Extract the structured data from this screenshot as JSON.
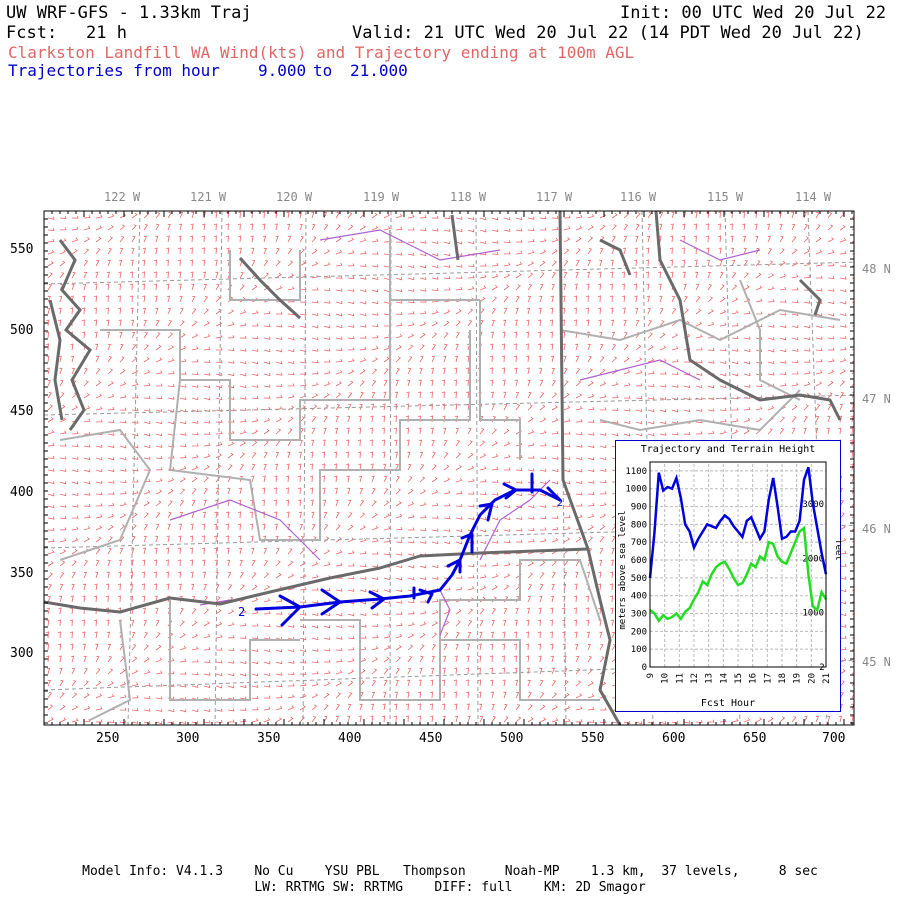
{
  "header": {
    "title_left": "UW WRF-GFS - 1.33km Traj",
    "init": "Init: 00 UTC Wed 20 Jul 22",
    "fcst_label": "Fcst:",
    "fcst_value": "21 h",
    "valid": "Valid: 21 UTC Wed 20 Jul 22 (14 PDT Wed 20 Jul 22)",
    "subtitle_red": "Clarkston Landfill WA Wind(kts) and Trajectory ending at 100m AGL",
    "subtitle_blue_prefix": "Trajectories from hour",
    "hour_from": "9.000",
    "to_word": "to",
    "hour_to": "21.000"
  },
  "map": {
    "lon_labels": [
      "122 W",
      "121 W",
      "120 W",
      "119 W",
      "118 W",
      "117 W",
      "116 W",
      "115 W",
      "114 W"
    ],
    "lat_labels": [
      "48 N",
      "47 N",
      "46 N",
      "45 N"
    ],
    "x_ticks": [
      "250",
      "300",
      "350",
      "400",
      "450",
      "500",
      "550",
      "600",
      "650",
      "700"
    ],
    "y_ticks": [
      "550",
      "500",
      "450",
      "400",
      "350",
      "300"
    ],
    "trajectory_start_label": "2",
    "trajectory_end_label": "2",
    "colors": {
      "wind_barbs": "#ee6666",
      "trajectory": "#0000dd",
      "borders": "#777777",
      "county_lines": "#aaaaaa",
      "rivers": "#aa55cc"
    }
  },
  "inset": {
    "title": "Trajectory and Terrain Height",
    "ylabel_left": "meters above sea level",
    "ylabel_right": "feet",
    "xlabel": "Fcst Hour",
    "y_ticks_m": [
      "1100",
      "1000",
      "900",
      "800",
      "700",
      "600",
      "500",
      "400",
      "300",
      "200",
      "100",
      "0"
    ],
    "y_ticks_ft": [
      "3000",
      "2000",
      "1000"
    ],
    "x_ticks": [
      "9",
      "10",
      "11",
      "12",
      "13",
      "14",
      "15",
      "16",
      "17",
      "18",
      "19",
      "20",
      "21"
    ],
    "end_marker": "2"
  },
  "chart_data": {
    "type": "line",
    "title": "Trajectory and Terrain Height",
    "xlabel": "Fcst Hour",
    "ylabel": "meters above sea level",
    "xlim": [
      9,
      21
    ],
    "ylim": [
      0,
      1150
    ],
    "series": [
      {
        "color": "#0000dd",
        "x": [
          9.0,
          9.3,
          9.6,
          9.9,
          10.2,
          10.5,
          10.8,
          11.1,
          11.4,
          11.7,
          12.0,
          12.3,
          12.6,
          12.9,
          13.2,
          13.5,
          13.8,
          14.1,
          14.4,
          14.7,
          15.0,
          15.3,
          15.6,
          15.9,
          16.2,
          16.5,
          16.8,
          17.1,
          17.4,
          17.7,
          18.0,
          18.3,
          18.6,
          18.9,
          19.2,
          19.5,
          19.8,
          20.1,
          20.4,
          20.7,
          21.0
        ],
        "y": [
          500,
          750,
          1090,
          990,
          1010,
          1000,
          1060,
          950,
          800,
          760,
          670,
          720,
          760,
          800,
          790,
          780,
          820,
          850,
          830,
          790,
          760,
          730,
          820,
          840,
          780,
          720,
          760,
          940,
          1060,
          900,
          720,
          730,
          760,
          760,
          820,
          1050,
          1120,
          920,
          780,
          640,
          520
        ]
      },
      {
        "color": "#22dd22",
        "x": [
          9.0,
          9.3,
          9.6,
          9.9,
          10.2,
          10.5,
          10.8,
          11.1,
          11.4,
          11.7,
          12.0,
          12.3,
          12.6,
          12.9,
          13.2,
          13.5,
          13.8,
          14.1,
          14.4,
          14.7,
          15.0,
          15.3,
          15.6,
          15.9,
          16.2,
          16.5,
          16.8,
          17.1,
          17.4,
          17.7,
          18.0,
          18.3,
          18.6,
          18.9,
          19.2,
          19.5,
          19.8,
          20.1,
          20.4,
          20.7,
          21.0
        ],
        "y": [
          320,
          300,
          260,
          290,
          270,
          280,
          300,
          270,
          310,
          330,
          380,
          420,
          480,
          460,
          520,
          560,
          580,
          590,
          550,
          500,
          460,
          470,
          520,
          580,
          560,
          620,
          600,
          700,
          690,
          620,
          590,
          580,
          640,
          700,
          760,
          780,
          520,
          340,
          320,
          420,
          380
        ]
      }
    ]
  },
  "footer": {
    "line1": "Model Info: V4.1.3    No Cu    YSU PBL   Thompson     Noah-MP    1.3 km,  37 levels,     8 sec",
    "line2": "LW: RRTMG SW: RRTMG    DIFF: full    KM: 2D Smagor"
  }
}
